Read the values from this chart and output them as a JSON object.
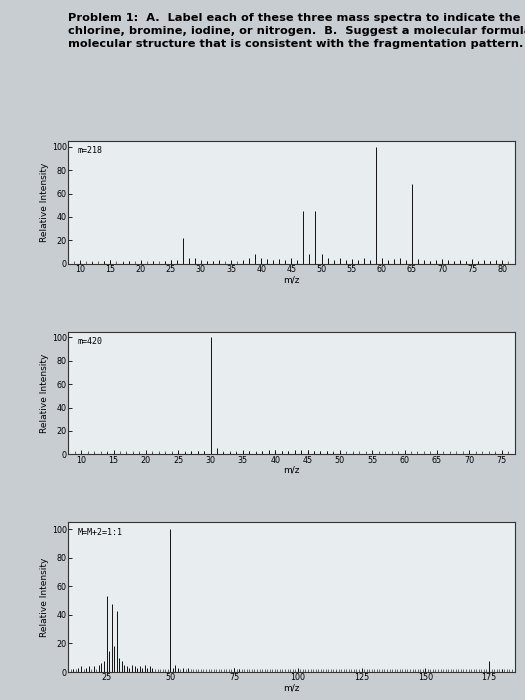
{
  "title_line1": "Problem 1:  A.  Label each of these three mass spectra to indicate the presence of sulfur,",
  "title_line2": "chlorine, bromine, iodine, or nitrogen.  B.  Suggest a molecular formula for each.  C.  Draw a",
  "title_line3": "molecular structure that is consistent with the fragmentation pattern.",
  "spectrum1": {
    "annotation": "m=218",
    "peaks": [
      [
        10,
        1
      ],
      [
        12,
        1
      ],
      [
        14,
        2
      ],
      [
        15,
        3
      ],
      [
        17,
        1
      ],
      [
        18,
        2
      ],
      [
        20,
        2
      ],
      [
        22,
        2
      ],
      [
        24,
        2
      ],
      [
        25,
        3
      ],
      [
        26,
        3
      ],
      [
        27,
        22
      ],
      [
        28,
        5
      ],
      [
        29,
        5
      ],
      [
        31,
        2
      ],
      [
        32,
        2
      ],
      [
        33,
        3
      ],
      [
        35,
        2
      ],
      [
        37,
        3
      ],
      [
        38,
        5
      ],
      [
        39,
        8
      ],
      [
        40,
        5
      ],
      [
        41,
        4
      ],
      [
        42,
        3
      ],
      [
        43,
        4
      ],
      [
        44,
        3
      ],
      [
        45,
        5
      ],
      [
        46,
        3
      ],
      [
        47,
        45
      ],
      [
        48,
        8
      ],
      [
        49,
        45
      ],
      [
        50,
        8
      ],
      [
        51,
        5
      ],
      [
        52,
        3
      ],
      [
        53,
        5
      ],
      [
        54,
        3
      ],
      [
        55,
        4
      ],
      [
        56,
        3
      ],
      [
        57,
        5
      ],
      [
        58,
        3
      ],
      [
        59,
        100
      ],
      [
        60,
        5
      ],
      [
        61,
        3
      ],
      [
        62,
        4
      ],
      [
        63,
        5
      ],
      [
        64,
        3
      ],
      [
        65,
        68
      ],
      [
        66,
        4
      ],
      [
        67,
        3
      ],
      [
        68,
        2
      ],
      [
        69,
        3
      ],
      [
        70,
        4
      ],
      [
        71,
        3
      ],
      [
        72,
        2
      ],
      [
        73,
        3
      ],
      [
        74,
        2
      ],
      [
        75,
        4
      ],
      [
        76,
        2
      ],
      [
        77,
        3
      ],
      [
        78,
        2
      ],
      [
        79,
        3
      ],
      [
        80,
        2
      ]
    ],
    "xlim": [
      8,
      82
    ],
    "xticks": [
      10,
      15,
      20,
      25,
      30,
      35,
      40,
      45,
      50,
      55,
      60,
      65,
      70,
      75,
      80
    ],
    "ylim": [
      0,
      105
    ],
    "yticks": [
      0,
      20,
      40,
      60,
      80,
      100
    ],
    "xlabel": "m/z",
    "ylabel": "Relative Intensity"
  },
  "spectrum2": {
    "annotation": "m=420",
    "peaks": [
      [
        10,
        1
      ],
      [
        12,
        1
      ],
      [
        14,
        2
      ],
      [
        15,
        2
      ],
      [
        17,
        1
      ],
      [
        18,
        1
      ],
      [
        19,
        1
      ],
      [
        20,
        1
      ],
      [
        21,
        1
      ],
      [
        22,
        1
      ],
      [
        23,
        1
      ],
      [
        24,
        1
      ],
      [
        25,
        2
      ],
      [
        26,
        2
      ],
      [
        27,
        3
      ],
      [
        28,
        3
      ],
      [
        29,
        3
      ],
      [
        30,
        100
      ],
      [
        31,
        5
      ],
      [
        32,
        2
      ],
      [
        33,
        2
      ],
      [
        34,
        2
      ],
      [
        35,
        3
      ],
      [
        36,
        3
      ],
      [
        37,
        2
      ],
      [
        38,
        3
      ],
      [
        39,
        4
      ],
      [
        40,
        4
      ],
      [
        41,
        3
      ],
      [
        42,
        3
      ],
      [
        43,
        4
      ],
      [
        44,
        4
      ],
      [
        45,
        4
      ],
      [
        46,
        3
      ],
      [
        47,
        3
      ],
      [
        48,
        3
      ],
      [
        49,
        2
      ],
      [
        50,
        2
      ],
      [
        52,
        1
      ],
      [
        55,
        1
      ],
      [
        60,
        1
      ],
      [
        65,
        1
      ],
      [
        70,
        1
      ],
      [
        74,
        1
      ],
      [
        75,
        2
      ]
    ],
    "xlim": [
      8,
      77
    ],
    "xticks": [
      10,
      15,
      20,
      25,
      30,
      35,
      40,
      45,
      50,
      55,
      60,
      65,
      70,
      75
    ],
    "ylim": [
      0,
      105
    ],
    "yticks": [
      0,
      20,
      40,
      60,
      80,
      100
    ],
    "xlabel": "m/z",
    "ylabel": "Relative Intensity"
  },
  "spectrum3": {
    "annotation": "M=M+2=1:1",
    "peaks": [
      [
        10,
        2
      ],
      [
        12,
        2
      ],
      [
        14,
        3
      ],
      [
        15,
        4
      ],
      [
        17,
        3
      ],
      [
        18,
        4
      ],
      [
        20,
        4
      ],
      [
        22,
        5
      ],
      [
        23,
        6
      ],
      [
        24,
        8
      ],
      [
        25,
        53
      ],
      [
        26,
        15
      ],
      [
        27,
        48
      ],
      [
        28,
        18
      ],
      [
        29,
        43
      ],
      [
        30,
        10
      ],
      [
        31,
        8
      ],
      [
        32,
        5
      ],
      [
        33,
        4
      ],
      [
        34,
        3
      ],
      [
        35,
        5
      ],
      [
        36,
        4
      ],
      [
        37,
        3
      ],
      [
        38,
        4
      ],
      [
        39,
        3
      ],
      [
        40,
        5
      ],
      [
        41,
        3
      ],
      [
        42,
        4
      ],
      [
        43,
        3
      ],
      [
        50,
        100
      ],
      [
        51,
        3
      ],
      [
        52,
        5
      ],
      [
        53,
        3
      ],
      [
        55,
        3
      ],
      [
        57,
        3
      ],
      [
        75,
        3
      ],
      [
        77,
        2
      ],
      [
        100,
        2
      ],
      [
        115,
        1
      ],
      [
        125,
        2
      ],
      [
        150,
        2
      ],
      [
        175,
        8
      ],
      [
        180,
        2
      ]
    ],
    "xlim": [
      10,
      185
    ],
    "xticks": [
      25,
      50,
      75,
      100,
      125,
      150,
      175
    ],
    "ylim": [
      0,
      105
    ],
    "yticks": [
      0,
      20,
      40,
      60,
      80,
      100
    ],
    "xlabel": "m/z",
    "ylabel": "Relative Intensity"
  },
  "bg_color": "#c8cdd2",
  "plot_bg": "#e8edf0",
  "bar_color": "#111111",
  "title_fontsize": 8.2,
  "axis_label_fontsize": 6.5,
  "tick_fontsize": 5.8,
  "annotation_fontsize": 6.0
}
